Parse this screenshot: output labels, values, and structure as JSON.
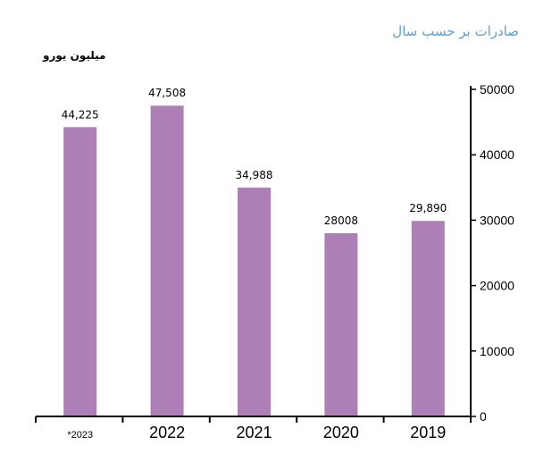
{
  "chart_data": {
    "type": "bar",
    "title": "صادرات بر حسب سال",
    "unit_label": "میلیون یورو",
    "categories": [
      "2023*",
      "2022",
      "2021",
      "2020",
      "2019"
    ],
    "values": [
      44225,
      47508,
      34988,
      28008,
      29890
    ],
    "value_labels": [
      "44,225",
      "47,508",
      "34,988",
      "28008",
      "29,890"
    ],
    "y_ticks": [
      0,
      10000,
      20000,
      30000,
      40000,
      50000
    ],
    "ylim": [
      0,
      50000
    ],
    "y_axis_side": "right",
    "grid": false,
    "legend": "none",
    "bar_color": "#ad7fb6"
  }
}
